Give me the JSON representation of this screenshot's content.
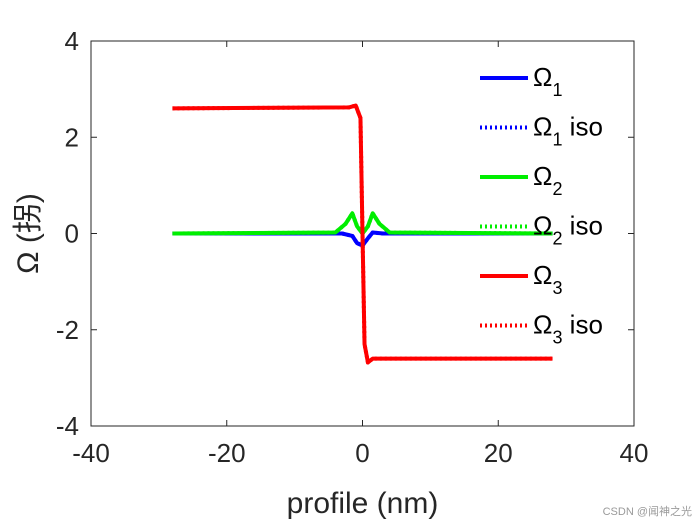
{
  "chart_data": {
    "type": "line",
    "title": "",
    "xlabel": "profile (nm)",
    "ylabel": "Ω (拐)",
    "xlim": [
      -40,
      40
    ],
    "ylim": [
      -4,
      4
    ],
    "xticks": [
      -40,
      -20,
      0,
      20,
      40
    ],
    "yticks": [
      -4,
      -2,
      0,
      2,
      4
    ],
    "xtick_labels": [
      "-40",
      "-20",
      "0",
      "20",
      "40"
    ],
    "ytick_labels": [
      "-4",
      "-2",
      "0",
      "2",
      "4"
    ],
    "grid": false,
    "legend_position": "right",
    "series": [
      {
        "name": "Ω",
        "sub": "1",
        "suffix": "",
        "color": "#0000ff",
        "style": "solid",
        "x": [
          -28,
          -3,
          -1.5,
          -0.8,
          0,
          0.8,
          1.5,
          3,
          28
        ],
        "y": [
          0,
          0,
          -0.05,
          -0.2,
          -0.25,
          -0.1,
          0.02,
          0,
          0
        ]
      },
      {
        "name": "Ω",
        "sub": "1",
        "suffix": " iso",
        "color": "#0000ff",
        "style": "dotted",
        "x": [
          -28,
          -3,
          -1.5,
          -0.8,
          0,
          0.8,
          1.5,
          3,
          28
        ],
        "y": [
          0,
          0,
          -0.05,
          -0.2,
          -0.25,
          -0.1,
          0.02,
          0,
          0
        ]
      },
      {
        "name": "Ω",
        "sub": "2",
        "suffix": "",
        "color": "#00ee00",
        "style": "solid",
        "x": [
          -28,
          -4,
          -2.5,
          -1.5,
          -0.8,
          0,
          0.8,
          1.5,
          2.5,
          4,
          28
        ],
        "y": [
          0,
          0.02,
          0.2,
          0.42,
          0.15,
          0,
          0.15,
          0.42,
          0.2,
          0.02,
          0
        ]
      },
      {
        "name": "Ω",
        "sub": "2",
        "suffix": " iso",
        "color": "#00ee00",
        "style": "dotted",
        "x": [
          -28,
          -4,
          -2.5,
          -1.5,
          -0.8,
          0,
          0.8,
          1.5,
          2.5,
          4,
          28
        ],
        "y": [
          0,
          0.02,
          0.2,
          0.42,
          0.15,
          0,
          0.15,
          0.42,
          0.2,
          0.02,
          0
        ]
      },
      {
        "name": "Ω",
        "sub": "3",
        "suffix": "",
        "color": "#ff0000",
        "style": "solid",
        "x": [
          -28,
          -2,
          -1,
          -0.3,
          0,
          0.3,
          0.8,
          1.5,
          3,
          28
        ],
        "y": [
          2.6,
          2.62,
          2.66,
          2.4,
          0,
          -2.3,
          -2.68,
          -2.6,
          -2.6,
          -2.6
        ]
      },
      {
        "name": "Ω",
        "sub": "3",
        "suffix": " iso",
        "color": "#ff0000",
        "style": "dotted",
        "x": [
          -28,
          -2,
          -1,
          -0.3,
          0,
          0.3,
          0.8,
          1.5,
          3,
          28
        ],
        "y": [
          2.6,
          2.62,
          2.66,
          2.4,
          0,
          -2.3,
          -2.68,
          -2.6,
          -2.6,
          -2.6
        ]
      }
    ]
  },
  "watermark": "CSDN @闻神之光"
}
